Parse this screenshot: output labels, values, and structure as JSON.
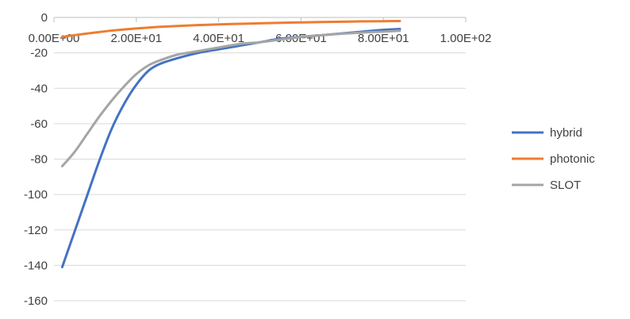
{
  "chart_data": {
    "type": "line",
    "title": "",
    "xlabel": "",
    "ylabel": "",
    "xlim": [
      0,
      100
    ],
    "ylim": [
      -160,
      0
    ],
    "x_ticks": [
      "0.00E+00",
      "2.00E+01",
      "4.00E+01",
      "6.00E+01",
      "8.00E+01",
      "1.00E+02"
    ],
    "y_ticks": [
      "0",
      "-20",
      "-40",
      "-60",
      "-80",
      "-100",
      "-120",
      "-140",
      "-160"
    ],
    "grid": "horizontal",
    "legend_position": "right",
    "series": [
      {
        "name": "hybrid",
        "color": "#4472C4",
        "x": [
          2,
          5,
          8,
          11,
          14,
          17,
          20,
          23,
          26,
          30,
          35,
          40,
          45,
          50,
          55,
          60,
          65,
          70,
          75,
          80,
          84
        ],
        "y": [
          -141,
          -121,
          -101,
          -81,
          -63,
          -49,
          -38,
          -30,
          -26,
          -23,
          -20,
          -18,
          -16,
          -14,
          -12,
          -11,
          -10,
          -9,
          -8,
          -7,
          -6.5
        ]
      },
      {
        "name": "photonic",
        "color": "#ED7D31",
        "x": [
          2,
          5,
          10,
          15,
          20,
          25,
          30,
          35,
          40,
          45,
          50,
          55,
          60,
          65,
          70,
          75,
          80,
          84
        ],
        "y": [
          -11,
          -10,
          -8.5,
          -7.2,
          -6.2,
          -5.4,
          -4.8,
          -4.3,
          -3.9,
          -3.6,
          -3.3,
          -3.0,
          -2.8,
          -2.6,
          -2.4,
          -2.2,
          -2.1,
          -2.0
        ]
      },
      {
        "name": "SLOT",
        "color": "#A5A5A5",
        "x": [
          2,
          5,
          8,
          11,
          14,
          17,
          20,
          23,
          26,
          30,
          35,
          40,
          45,
          50,
          55,
          60,
          65,
          70,
          75,
          80,
          84
        ],
        "y": [
          -84,
          -76,
          -66,
          -56,
          -47,
          -39,
          -32,
          -27,
          -24,
          -21,
          -19,
          -17,
          -15,
          -14,
          -12.5,
          -11,
          -10,
          -9.2,
          -8.5,
          -8,
          -7.5
        ]
      }
    ]
  }
}
